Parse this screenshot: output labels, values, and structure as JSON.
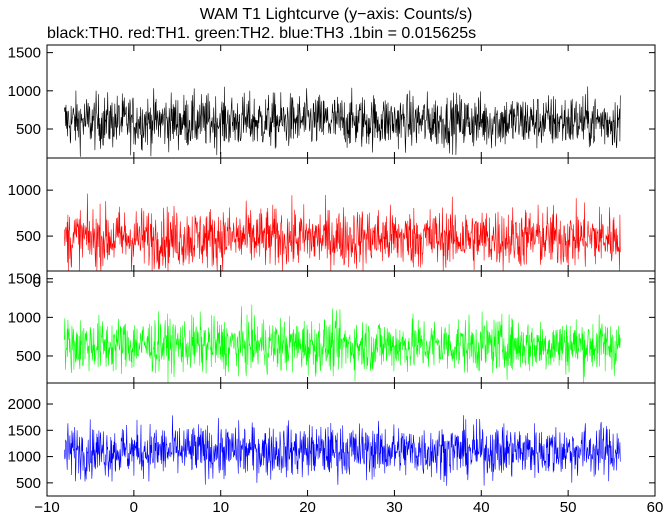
{
  "chart_data": {
    "type": "line",
    "title": "WAM T1 Lightcurve (y−axis: Counts/s)",
    "subtitle": "black:TH0. red:TH1. green:TH2. blue:TH3 .1bin = 0.015625s",
    "xlabel": "",
    "ylabel": "",
    "xlim": [
      -10,
      60
    ],
    "x_ticks": [
      -10,
      0,
      10,
      20,
      30,
      40,
      50,
      60
    ],
    "x_tick_labels": [
      "−10",
      "0",
      "10",
      "20",
      "30",
      "40",
      "50",
      "60"
    ],
    "x_data_range": [
      -8,
      56
    ],
    "bin_size_s": 0.015625,
    "series": [
      {
        "name": "TH0",
        "color": "#000000",
        "ylim": [
          120,
          1600
        ],
        "y_ticks": [
          500,
          1000,
          1500
        ],
        "y_tick_labels": [
          "500",
          "1000",
          "1500"
        ],
        "mean": 600,
        "amplitude": 320
      },
      {
        "name": "TH1",
        "color": "#ff0000",
        "ylim": [
          120,
          1350
        ],
        "y_ticks": [
          0,
          500,
          1000
        ],
        "y_tick_labels": [
          "0",
          "500",
          "1000"
        ],
        "mean": 480,
        "amplitude": 300
      },
      {
        "name": "TH2",
        "color": "#00ff00",
        "ylim": [
          150,
          1600
        ],
        "y_ticks": [
          500,
          1000,
          1500
        ],
        "y_tick_labels": [
          "500",
          "1000",
          "1500"
        ],
        "mean": 640,
        "amplitude": 320
      },
      {
        "name": "TH3",
        "color": "#0000ff",
        "ylim": [
          250,
          2400
        ],
        "y_ticks": [
          500,
          1000,
          1500,
          2000
        ],
        "y_tick_labels": [
          "500",
          "1000",
          "1500",
          "2000"
        ],
        "mean": 1110,
        "amplitude": 450
      }
    ],
    "grid": false,
    "legend": "none"
  }
}
